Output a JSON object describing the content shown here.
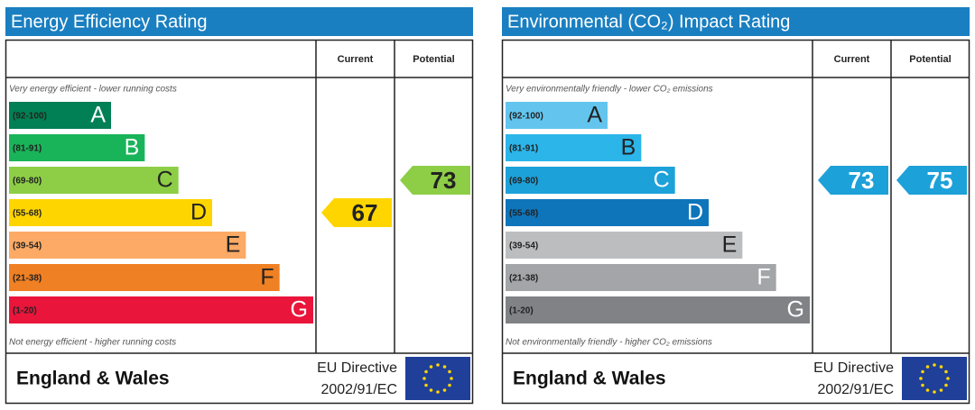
{
  "panels": [
    {
      "title": "Energy Efficiency Rating",
      "column_headers": [
        "Current",
        "Potential"
      ],
      "top_note": "Very energy efficient - lower running costs",
      "bottom_note": "Not energy efficient - higher running costs",
      "bands": [
        {
          "range": "(92-100)",
          "letter": "A",
          "color": "#008054",
          "letter_color": "#ffffff"
        },
        {
          "range": "(81-91)",
          "letter": "B",
          "color": "#19b459",
          "letter_color": "#ffffff"
        },
        {
          "range": "(69-80)",
          "letter": "C",
          "color": "#8dce46",
          "letter_color": "#222222"
        },
        {
          "range": "(55-68)",
          "letter": "D",
          "color": "#ffd500",
          "letter_color": "#222222"
        },
        {
          "range": "(39-54)",
          "letter": "E",
          "color": "#fcaa65",
          "letter_color": "#222222"
        },
        {
          "range": "(21-38)",
          "letter": "F",
          "color": "#ef8023",
          "letter_color": "#222222"
        },
        {
          "range": "(1-20)",
          "letter": "G",
          "color": "#e9153b",
          "letter_color": "#ffffff"
        }
      ],
      "current": 67,
      "potential": 73,
      "footer": {
        "region": "England & Wales",
        "directive": [
          "EU Directive",
          "2002/91/EC"
        ]
      }
    },
    {
      "title": "Environmental (CO₂) Impact Rating",
      "column_headers": [
        "Current",
        "Potential"
      ],
      "top_note": "Very environmentally friendly - lower CO₂ emissions",
      "bottom_note": "Not environmentally friendly - higher CO₂ emissions",
      "bands": [
        {
          "range": "(92-100)",
          "letter": "A",
          "color": "#63c5ee",
          "letter_color": "#222222"
        },
        {
          "range": "(81-91)",
          "letter": "B",
          "color": "#2bb5e9",
          "letter_color": "#222222"
        },
        {
          "range": "(69-80)",
          "letter": "C",
          "color": "#1da1d9",
          "letter_color": "#ffffff"
        },
        {
          "range": "(55-68)",
          "letter": "D",
          "color": "#0e75bb",
          "letter_color": "#ffffff"
        },
        {
          "range": "(39-54)",
          "letter": "E",
          "color": "#bbbdbf",
          "letter_color": "#222222"
        },
        {
          "range": "(21-38)",
          "letter": "F",
          "color": "#a3a5a8",
          "letter_color": "#ffffff"
        },
        {
          "range": "(1-20)",
          "letter": "G",
          "color": "#808285",
          "letter_color": "#ffffff"
        }
      ],
      "current": 73,
      "potential": 75,
      "footer": {
        "region": "England & Wales",
        "directive": [
          "EU Directive",
          "2002/91/EC"
        ]
      }
    }
  ]
}
